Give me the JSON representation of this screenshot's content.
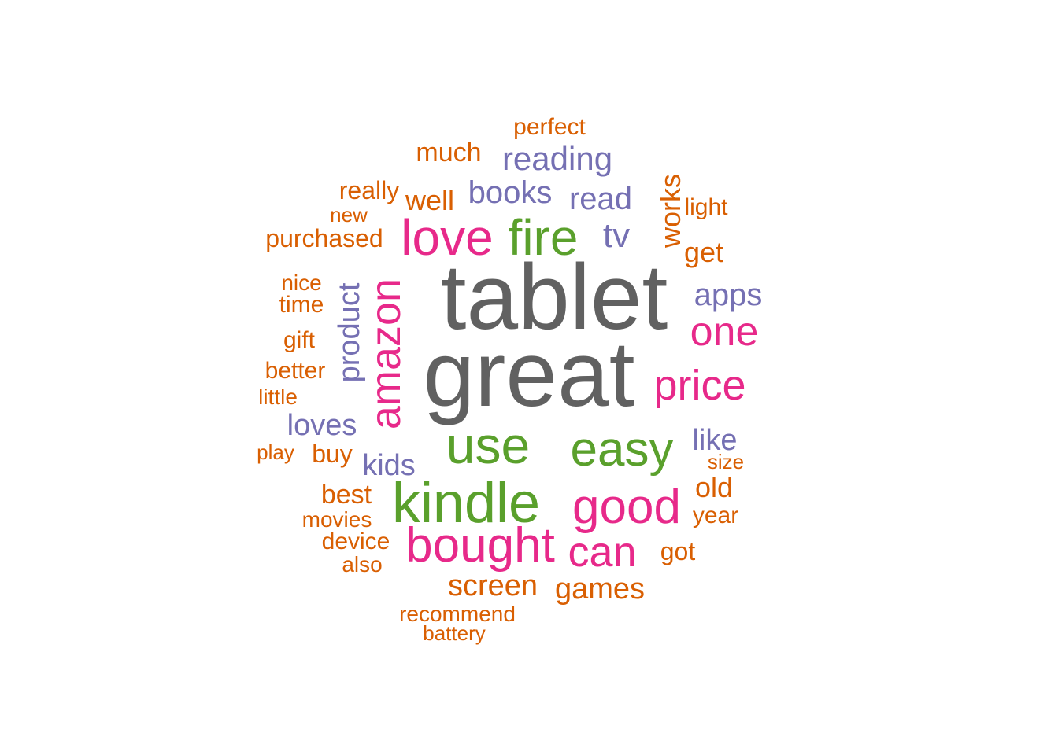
{
  "colors": {
    "gray": "#616161",
    "green": "#5aa02c",
    "magenta": "#e7298a",
    "purple": "#7570b3",
    "orange": "#d95f02"
  },
  "words": [
    {
      "text": "tablet",
      "color": "gray"
    },
    {
      "text": "great",
      "color": "gray"
    },
    {
      "text": "fire",
      "color": "green"
    },
    {
      "text": "use",
      "color": "green"
    },
    {
      "text": "easy",
      "color": "green"
    },
    {
      "text": "kindle",
      "color": "green"
    },
    {
      "text": "love",
      "color": "magenta"
    },
    {
      "text": "amazon",
      "color": "magenta"
    },
    {
      "text": "one",
      "color": "magenta"
    },
    {
      "text": "price",
      "color": "magenta"
    },
    {
      "text": "good",
      "color": "magenta"
    },
    {
      "text": "bought",
      "color": "magenta"
    },
    {
      "text": "can",
      "color": "magenta"
    },
    {
      "text": "reading",
      "color": "purple"
    },
    {
      "text": "books",
      "color": "purple"
    },
    {
      "text": "read",
      "color": "purple"
    },
    {
      "text": "tv",
      "color": "purple"
    },
    {
      "text": "apps",
      "color": "purple"
    },
    {
      "text": "product",
      "color": "purple"
    },
    {
      "text": "loves",
      "color": "purple"
    },
    {
      "text": "kids",
      "color": "purple"
    },
    {
      "text": "like",
      "color": "purple"
    },
    {
      "text": "perfect",
      "color": "orange"
    },
    {
      "text": "much",
      "color": "orange"
    },
    {
      "text": "really",
      "color": "orange"
    },
    {
      "text": "well",
      "color": "orange"
    },
    {
      "text": "new",
      "color": "orange"
    },
    {
      "text": "works",
      "color": "orange"
    },
    {
      "text": "light",
      "color": "orange"
    },
    {
      "text": "purchased",
      "color": "orange"
    },
    {
      "text": "get",
      "color": "orange"
    },
    {
      "text": "nice",
      "color": "orange"
    },
    {
      "text": "time",
      "color": "orange"
    },
    {
      "text": "gift",
      "color": "orange"
    },
    {
      "text": "better",
      "color": "orange"
    },
    {
      "text": "little",
      "color": "orange"
    },
    {
      "text": "play",
      "color": "orange"
    },
    {
      "text": "buy",
      "color": "orange"
    },
    {
      "text": "size",
      "color": "orange"
    },
    {
      "text": "best",
      "color": "orange"
    },
    {
      "text": "old",
      "color": "orange"
    },
    {
      "text": "movies",
      "color": "orange"
    },
    {
      "text": "year",
      "color": "orange"
    },
    {
      "text": "device",
      "color": "orange"
    },
    {
      "text": "got",
      "color": "orange"
    },
    {
      "text": "also",
      "color": "orange"
    },
    {
      "text": "screen",
      "color": "orange"
    },
    {
      "text": "games",
      "color": "orange"
    },
    {
      "text": "recommend",
      "color": "orange"
    },
    {
      "text": "battery",
      "color": "orange"
    }
  ]
}
